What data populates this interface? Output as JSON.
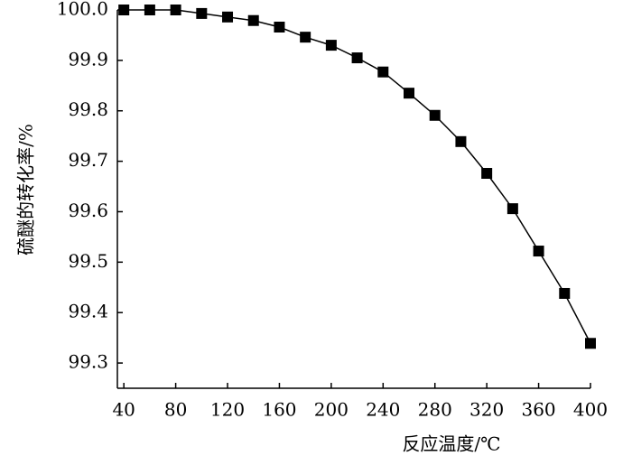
{
  "chart_data": {
    "type": "line",
    "x_label": "反应温度/℃",
    "y_label": "硫醚的转化率/%",
    "x": [
      40,
      60,
      80,
      100,
      120,
      140,
      160,
      180,
      200,
      220,
      240,
      260,
      280,
      300,
      320,
      340,
      360,
      380,
      400
    ],
    "series": [
      {
        "color": "#000000",
        "values": [
          100.0,
          100.0,
          100.0,
          99.993,
          99.986,
          99.979,
          99.966,
          99.946,
          99.93,
          99.905,
          99.877,
          99.835,
          99.791,
          99.739,
          99.676,
          99.606,
          99.522,
          99.438,
          99.339
        ]
      }
    ],
    "xlim": [
      35,
      400
    ],
    "xticks": [
      40,
      80,
      120,
      160,
      200,
      240,
      280,
      320,
      360,
      400
    ],
    "ylim": [
      99.25,
      100.0
    ],
    "yticks": [
      99.3,
      99.4,
      99.5,
      99.6,
      99.7,
      99.8,
      99.9,
      {
        "value": 100.0,
        "label": "100.0"
      }
    ],
    "marker": "square"
  }
}
